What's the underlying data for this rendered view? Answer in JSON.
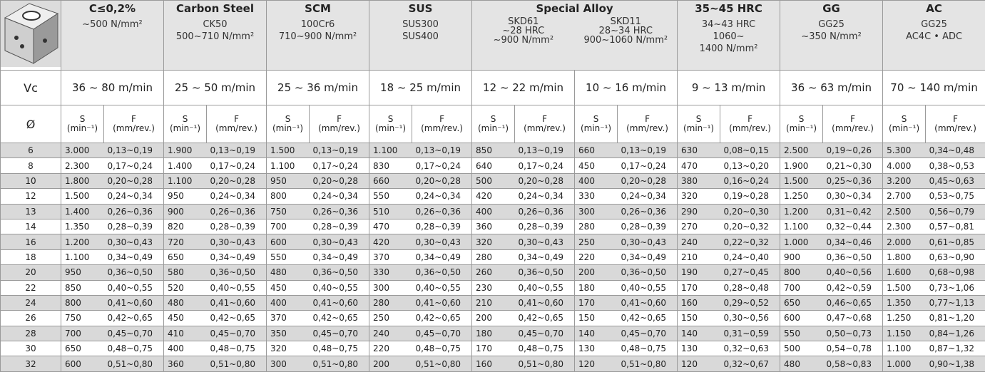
{
  "header": {
    "groups": [
      {
        "title": "C≤0,2%",
        "spec": [
          "~500 N/mm²"
        ]
      },
      {
        "title": "Carbon Steel",
        "spec": [
          "CK50",
          "500~710 N/mm²"
        ]
      },
      {
        "title": "SCM",
        "spec": [
          "100Cr6",
          "710~900 N/mm²"
        ]
      },
      {
        "title": "SUS",
        "spec": [
          "SUS300",
          "SUS400"
        ]
      },
      {
        "title": "Special Alloy",
        "sub": [
          [
            "SKD61",
            "~28 HRC",
            "~900 N/mm²"
          ],
          [
            "SKD11",
            "28~34 HRC",
            "900~1060 N/mm²"
          ]
        ]
      },
      {
        "title": "35~45 HRC",
        "spec": [
          "34~43 HRC",
          "1060~",
          "1400 N/mm²"
        ]
      },
      {
        "title": "GG",
        "spec": [
          "GG25",
          "~350 N/mm²"
        ]
      },
      {
        "title": "AC",
        "spec": [
          "GG25",
          "AC4C • ADC"
        ]
      }
    ]
  },
  "vc": {
    "label": "Vc",
    "values": [
      "36 ~ 80 m/min",
      "25 ~ 50 m/min",
      "25 ~ 36 m/min",
      "18 ~ 25 m/min",
      "12 ~ 22 m/min",
      "10 ~ 16 m/min",
      "9 ~ 13 m/min",
      "36 ~ 63 m/min",
      "70 ~ 140 m/min"
    ]
  },
  "units": {
    "label": "Ø",
    "s": "S",
    "s_unit": "(min⁻¹)",
    "f": "F",
    "f_unit": "(mm/rev.)"
  },
  "table": {
    "rows": [
      [
        "6",
        "3.000",
        "0,13~0,19",
        "1.900",
        "0,13~0,19",
        "1.500",
        "0,13~0,19",
        "1.100",
        "0,13~0,19",
        "850",
        "0,13~0,19",
        "660",
        "0,13~0,19",
        "630",
        "0,08~0,15",
        "2.500",
        "0,19~0,26",
        "5.300",
        "0,34~0,48"
      ],
      [
        "8",
        "2.300",
        "0,17~0,24",
        "1.400",
        "0,17~0,24",
        "1.100",
        "0,17~0,24",
        "830",
        "0,17~0,24",
        "640",
        "0,17~0,24",
        "450",
        "0,17~0,24",
        "470",
        "0,13~0,20",
        "1.900",
        "0,21~0,30",
        "4.000",
        "0,38~0,53"
      ],
      [
        "10",
        "1.800",
        "0,20~0,28",
        "1.100",
        "0,20~0,28",
        "950",
        "0,20~0,28",
        "660",
        "0,20~0,28",
        "500",
        "0,20~0,28",
        "400",
        "0,20~0,28",
        "380",
        "0,16~0,24",
        "1.500",
        "0,25~0,36",
        "3.200",
        "0,45~0,63"
      ],
      [
        "12",
        "1.500",
        "0,24~0,34",
        "950",
        "0,24~0,34",
        "800",
        "0,24~0,34",
        "550",
        "0,24~0,34",
        "420",
        "0,24~0,34",
        "330",
        "0,24~0,34",
        "320",
        "0,19~0,28",
        "1.250",
        "0,30~0,34",
        "2.700",
        "0,53~0,75"
      ],
      [
        "13",
        "1.400",
        "0,26~0,36",
        "900",
        "0,26~0,36",
        "750",
        "0,26~0,36",
        "510",
        "0,26~0,36",
        "400",
        "0,26~0,36",
        "300",
        "0,26~0,36",
        "290",
        "0,20~0,30",
        "1.200",
        "0,31~0,42",
        "2.500",
        "0,56~0,79"
      ],
      [
        "14",
        "1.350",
        "0,28~0,39",
        "820",
        "0,28~0,39",
        "700",
        "0,28~0,39",
        "470",
        "0,28~0,39",
        "360",
        "0,28~0,39",
        "280",
        "0,28~0,39",
        "270",
        "0,20~0,32",
        "1.100",
        "0,32~0,44",
        "2.300",
        "0,57~0,81"
      ],
      [
        "16",
        "1.200",
        "0,30~0,43",
        "720",
        "0,30~0,43",
        "600",
        "0,30~0,43",
        "420",
        "0,30~0,43",
        "320",
        "0,30~0,43",
        "250",
        "0,30~0,43",
        "240",
        "0,22~0,32",
        "1.000",
        "0,34~0,46",
        "2.000",
        "0,61~0,85"
      ],
      [
        "18",
        "1.100",
        "0,34~0,49",
        "650",
        "0,34~0,49",
        "550",
        "0,34~0,49",
        "370",
        "0,34~0,49",
        "280",
        "0,34~0,49",
        "220",
        "0,34~0,49",
        "210",
        "0,24~0,40",
        "900",
        "0,36~0,50",
        "1.800",
        "0,63~0,90"
      ],
      [
        "20",
        "950",
        "0,36~0,50",
        "580",
        "0,36~0,50",
        "480",
        "0,36~0,50",
        "330",
        "0,36~0,50",
        "260",
        "0,36~0,50",
        "200",
        "0,36~0,50",
        "190",
        "0,27~0,45",
        "800",
        "0,40~0,56",
        "1.600",
        "0,68~0,98"
      ],
      [
        "22",
        "850",
        "0,40~0,55",
        "520",
        "0,40~0,55",
        "450",
        "0,40~0,55",
        "300",
        "0,40~0,55",
        "230",
        "0,40~0,55",
        "180",
        "0,40~0,55",
        "170",
        "0,28~0,48",
        "700",
        "0,42~0,59",
        "1.500",
        "0,73~1,06"
      ],
      [
        "24",
        "800",
        "0,41~0,60",
        "480",
        "0,41~0,60",
        "400",
        "0,41~0,60",
        "280",
        "0,41~0,60",
        "210",
        "0,41~0,60",
        "170",
        "0,41~0,60",
        "160",
        "0,29~0,52",
        "650",
        "0,46~0,65",
        "1.350",
        "0,77~1,13"
      ],
      [
        "26",
        "750",
        "0,42~0,65",
        "450",
        "0,42~0,65",
        "370",
        "0,42~0,65",
        "250",
        "0,42~0,65",
        "200",
        "0,42~0,65",
        "150",
        "0,42~0,65",
        "150",
        "0,30~0,56",
        "600",
        "0,47~0,68",
        "1.250",
        "0,81~1,20"
      ],
      [
        "28",
        "700",
        "0,45~0,70",
        "410",
        "0,45~0,70",
        "350",
        "0,45~0,70",
        "240",
        "0,45~0,70",
        "180",
        "0,45~0,70",
        "140",
        "0,45~0,70",
        "140",
        "0,31~0,59",
        "550",
        "0,50~0,73",
        "1.150",
        "0,84~1,26"
      ],
      [
        "30",
        "650",
        "0,48~0,75",
        "400",
        "0,48~0,75",
        "320",
        "0,48~0,75",
        "220",
        "0,48~0,75",
        "170",
        "0,48~0,75",
        "130",
        "0,48~0,75",
        "130",
        "0,32~0,63",
        "500",
        "0,54~0,78",
        "1.100",
        "0,87~1,32"
      ],
      [
        "32",
        "600",
        "0,51~0,80",
        "360",
        "0,51~0,80",
        "300",
        "0,51~0,80",
        "200",
        "0,51~0,80",
        "160",
        "0,51~0,80",
        "120",
        "0,51~0,80",
        "120",
        "0,32~0,67",
        "480",
        "0,58~0,83",
        "1.000",
        "0,90~1,38"
      ]
    ]
  }
}
